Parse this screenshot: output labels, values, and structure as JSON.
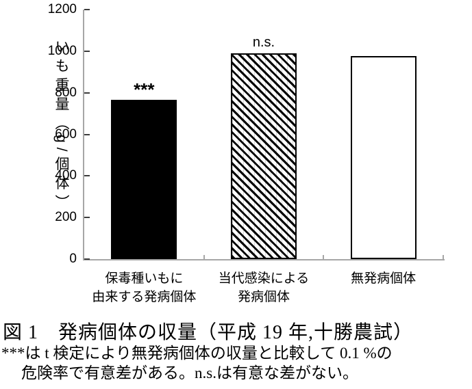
{
  "chart_data": {
    "type": "bar",
    "title": "",
    "categories": [
      [
        "保毒種いもに",
        "由来する発病個体"
      ],
      [
        "当代感染による",
        "発病個体"
      ],
      [
        "無発病個体"
      ]
    ],
    "values": [
      765,
      990,
      975
    ],
    "bar_styles": [
      "solid-black",
      "hatch-diagonal",
      "white-outline"
    ],
    "annotations": [
      "***",
      "n.s.",
      ""
    ],
    "ylabel": "いも重量（g/個体）",
    "xlabel": "",
    "ylim": [
      0,
      1200
    ],
    "ytick_step": 200,
    "ytick_labels": [
      "0",
      "200",
      "400",
      "600",
      "800",
      "1000",
      "1200"
    ],
    "grid": false,
    "legend_position": "none"
  },
  "figure": {
    "caption": "図 1　発病個体の収量（平成 19 年,十勝農試）",
    "footnote_line1": "***は t 検定により無発病個体の収量と比較して 0.1 %の",
    "footnote_line2": "危険率で有意差がある。n.s.は有意な差がない。",
    "colors": {
      "background": "#ffffff",
      "bar_fill": "#000000",
      "bar_outline": "#000000",
      "axis_line": "#a6a6a6",
      "tick_mark": "#3c3c3c",
      "text": "#000000"
    }
  }
}
